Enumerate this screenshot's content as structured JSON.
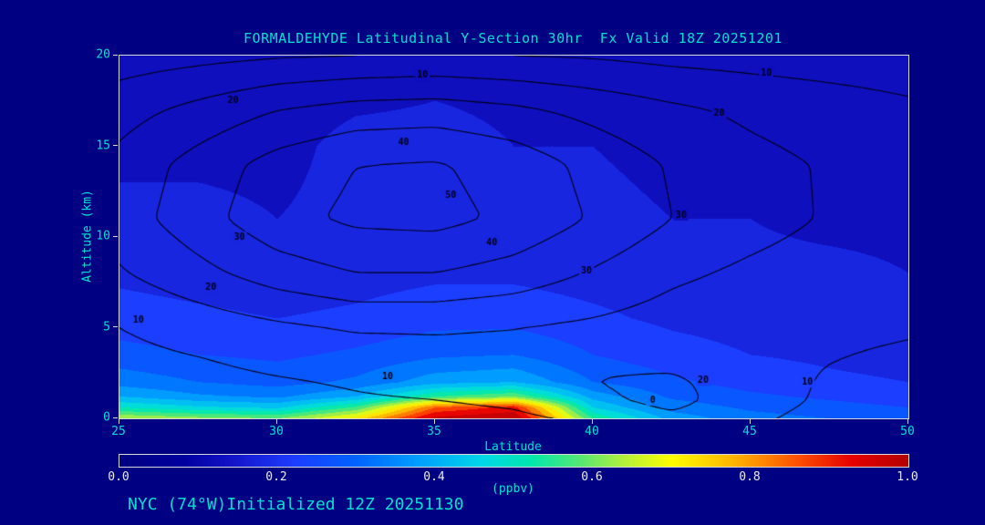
{
  "colors": {
    "background": "#000082",
    "text": "#00e0d2",
    "frame": "#d8d8d8",
    "colorbar_text": "#ededed",
    "contour_line": "#000014"
  },
  "chart_data": {
    "type": "heatmap",
    "title": "FORMALDEHYDE Latitudinal Y-Section 30hr  Fx Valid 18Z 20251201",
    "annotation": "NYC (74°W)Initialized 12Z 20251130",
    "xlabel": "Latitude",
    "ylabel": "Altitude (km)",
    "units": "(ppbv)",
    "xlim": [
      25,
      50
    ],
    "ylim": [
      0,
      20
    ],
    "xticks": [
      25,
      30,
      35,
      40,
      45,
      50
    ],
    "yticks": [
      0,
      5,
      10,
      15,
      20
    ],
    "band_step": 0.05,
    "colorbar": {
      "min": 0.0,
      "max": 1.0,
      "ticks": [
        "0.0",
        "0.2",
        "0.4",
        "0.6",
        "0.8",
        "1.0"
      ]
    },
    "colormap": [
      {
        "v": 0.0,
        "c": "#000080"
      },
      {
        "v": 0.08,
        "c": "#0000a0"
      },
      {
        "v": 0.14,
        "c": "#1414c8"
      },
      {
        "v": 0.22,
        "c": "#1e3cff"
      },
      {
        "v": 0.3,
        "c": "#0064ff"
      },
      {
        "v": 0.38,
        "c": "#00a0ff"
      },
      {
        "v": 0.46,
        "c": "#00d8e8"
      },
      {
        "v": 0.52,
        "c": "#00e8b0"
      },
      {
        "v": 0.58,
        "c": "#50e878"
      },
      {
        "v": 0.64,
        "c": "#b4f03c"
      },
      {
        "v": 0.7,
        "c": "#ffff00"
      },
      {
        "v": 0.78,
        "c": "#ffb400"
      },
      {
        "v": 0.86,
        "c": "#ff5000"
      },
      {
        "v": 0.93,
        "c": "#e60000"
      },
      {
        "v": 1.0,
        "c": "#b40000"
      }
    ],
    "fill_field": {
      "lats": [
        25,
        27.5,
        30,
        32.5,
        35,
        37.5,
        40,
        42.5,
        45,
        47.5,
        50
      ],
      "alts": [
        0,
        0.6,
        1.2,
        2,
        3.5,
        5.5,
        8,
        11,
        15,
        20
      ],
      "values": [
        [
          0.65,
          0.62,
          0.6,
          0.72,
          0.97,
          1.0,
          0.55,
          0.38,
          0.32,
          0.3,
          0.28
        ],
        [
          0.5,
          0.46,
          0.44,
          0.56,
          0.85,
          0.92,
          0.45,
          0.33,
          0.29,
          0.27,
          0.25
        ],
        [
          0.4,
          0.36,
          0.34,
          0.4,
          0.55,
          0.6,
          0.38,
          0.29,
          0.26,
          0.24,
          0.22
        ],
        [
          0.33,
          0.3,
          0.28,
          0.31,
          0.38,
          0.4,
          0.3,
          0.26,
          0.23,
          0.21,
          0.2
        ],
        [
          0.27,
          0.25,
          0.24,
          0.26,
          0.29,
          0.3,
          0.25,
          0.22,
          0.2,
          0.19,
          0.18
        ],
        [
          0.22,
          0.21,
          0.2,
          0.21,
          0.23,
          0.23,
          0.21,
          0.19,
          0.18,
          0.17,
          0.16
        ],
        [
          0.19,
          0.18,
          0.17,
          0.18,
          0.19,
          0.19,
          0.18,
          0.17,
          0.16,
          0.16,
          0.15
        ],
        [
          0.16,
          0.16,
          0.15,
          0.16,
          0.17,
          0.17,
          0.16,
          0.15,
          0.15,
          0.14,
          0.14
        ],
        [
          0.14,
          0.14,
          0.14,
          0.16,
          0.16,
          0.15,
          0.15,
          0.14,
          0.14,
          0.13,
          0.13
        ],
        [
          0.13,
          0.13,
          0.13,
          0.13,
          0.14,
          0.14,
          0.14,
          0.13,
          0.13,
          0.12,
          0.12
        ]
      ]
    },
    "contour_field": {
      "levels": [
        10,
        20,
        30,
        40,
        50
      ],
      "lats": [
        25,
        27.5,
        30,
        32.5,
        35,
        37.5,
        40,
        42.5,
        45,
        47.5,
        50
      ],
      "alts": [
        0,
        1,
        2,
        3,
        5,
        8,
        11,
        14,
        17,
        20
      ],
      "values": [
        [
          2,
          3,
          4,
          5,
          6,
          8,
          12,
          18,
          12,
          6,
          3
        ],
        [
          4,
          5,
          7,
          9,
          10,
          12,
          18,
          23,
          15,
          8,
          5
        ],
        [
          5,
          7,
          9,
          11,
          13,
          15,
          20,
          22,
          14,
          9,
          6
        ],
        [
          7,
          9,
          12,
          14,
          16,
          17,
          19,
          18,
          13,
          10,
          8
        ],
        [
          10,
          14,
          18,
          21,
          21,
          20,
          18,
          15,
          13,
          12,
          11
        ],
        [
          19,
          27,
          35,
          40,
          40,
          36,
          29,
          22,
          18,
          15,
          13
        ],
        [
          25,
          36,
          47,
          52,
          53,
          48,
          39,
          30,
          24,
          19,
          15
        ],
        [
          23,
          34,
          44,
          50,
          51,
          46,
          37,
          29,
          23,
          19,
          15
        ],
        [
          16,
          23,
          30,
          34,
          35,
          32,
          27,
          22,
          18,
          15,
          12
        ],
        [
          5,
          7,
          9,
          10,
          11,
          10,
          9,
          7,
          6,
          5,
          4
        ]
      ]
    },
    "contour_labels": [
      {
        "text": "10",
        "lat": 34.6,
        "alt": 18.9
      },
      {
        "text": "20",
        "lat": 28.6,
        "alt": 17.5
      },
      {
        "text": "40",
        "lat": 34.0,
        "alt": 15.2
      },
      {
        "text": "50",
        "lat": 35.5,
        "alt": 12.3
      },
      {
        "text": "30",
        "lat": 28.8,
        "alt": 10.0
      },
      {
        "text": "20",
        "lat": 27.9,
        "alt": 7.2
      },
      {
        "text": "10",
        "lat": 25.6,
        "alt": 5.4
      },
      {
        "text": "40",
        "lat": 36.8,
        "alt": 9.7
      },
      {
        "text": "10",
        "lat": 45.5,
        "alt": 19.0
      },
      {
        "text": "20",
        "lat": 44.0,
        "alt": 16.8
      },
      {
        "text": "30",
        "lat": 42.8,
        "alt": 11.2
      },
      {
        "text": "30",
        "lat": 39.8,
        "alt": 8.1
      },
      {
        "text": "20",
        "lat": 43.5,
        "alt": 2.1
      },
      {
        "text": "10",
        "lat": 33.5,
        "alt": 2.3
      },
      {
        "text": "10",
        "lat": 46.8,
        "alt": 2.0
      },
      {
        "text": "0",
        "lat": 41.9,
        "alt": 1.0
      }
    ]
  }
}
